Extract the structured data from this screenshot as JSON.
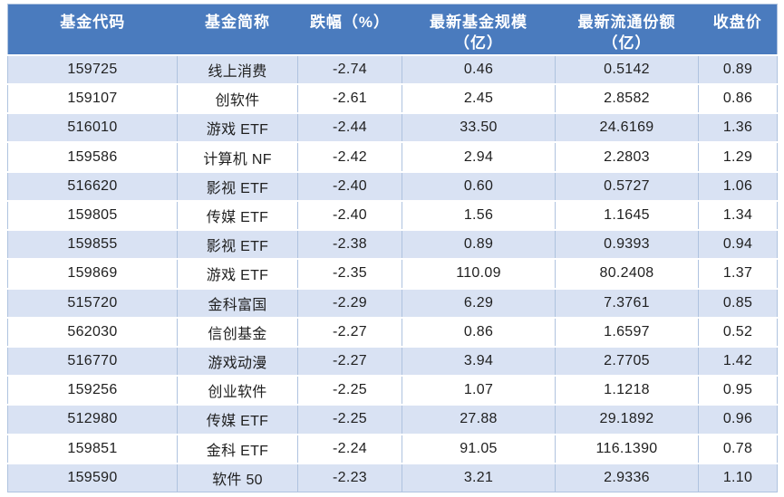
{
  "colors": {
    "header_bg": "#4A7BBE",
    "header_text": "#FFFFFF",
    "band_row_bg": "#D9E2F3",
    "plain_row_bg": "#FFFFFF",
    "grid_line": "#AFC3DF",
    "body_text": "#1F1F1F",
    "page_bg": "#FFFFFF"
  },
  "chart_data": {
    "type": "table",
    "columns": [
      "基金代码",
      "基金简称",
      "跌幅（%）",
      "最新基金规模\n（亿）",
      "最新流通份额\n（亿）",
      "收盘价"
    ],
    "rows": [
      [
        "159725",
        "线上消费",
        "-2.74",
        "0.46",
        "0.5142",
        "0.89"
      ],
      [
        "159107",
        "创软件",
        "-2.61",
        "2.45",
        "2.8582",
        "0.86"
      ],
      [
        "516010",
        "游戏 ETF",
        "-2.44",
        "33.50",
        "24.6169",
        "1.36"
      ],
      [
        "159586",
        "计算机 NF",
        "-2.42",
        "2.94",
        "2.2803",
        "1.29"
      ],
      [
        "516620",
        "影视 ETF",
        "-2.40",
        "0.60",
        "0.5727",
        "1.06"
      ],
      [
        "159805",
        "传媒 ETF",
        "-2.40",
        "1.56",
        "1.1645",
        "1.34"
      ],
      [
        "159855",
        "影视 ETF",
        "-2.38",
        "0.89",
        "0.9393",
        "0.94"
      ],
      [
        "159869",
        "游戏 ETF",
        "-2.35",
        "110.09",
        "80.2408",
        "1.37"
      ],
      [
        "515720",
        "金科富国",
        "-2.29",
        "6.29",
        "7.3761",
        "0.85"
      ],
      [
        "562030",
        "信创基金",
        "-2.27",
        "0.86",
        "1.6597",
        "0.52"
      ],
      [
        "516770",
        "游戏动漫",
        "-2.27",
        "3.94",
        "2.7705",
        "1.42"
      ],
      [
        "159256",
        "创业软件",
        "-2.25",
        "1.07",
        "1.1218",
        "0.95"
      ],
      [
        "512980",
        "传媒 ETF",
        "-2.25",
        "27.88",
        "29.1892",
        "0.96"
      ],
      [
        "159851",
        "金科 ETF",
        "-2.24",
        "91.05",
        "116.1390",
        "0.78"
      ],
      [
        "159590",
        "软件 50",
        "-2.23",
        "3.21",
        "2.9336",
        "1.10"
      ]
    ]
  }
}
